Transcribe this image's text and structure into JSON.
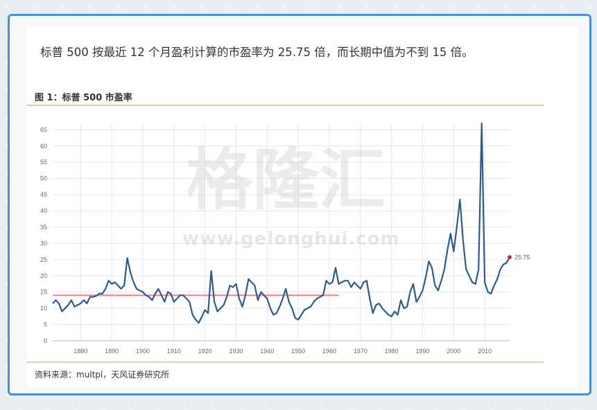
{
  "headline": "标普 500 按最近 12 个月盈利计算的市盈率为 25.75 倍，而长期中值为不到 15 倍。",
  "figure_title": "图 1：标普 500 市盈率",
  "source": "资料来源：multpl，天风证券研究所",
  "watermark": {
    "brand": "格隆汇",
    "url": "www.gelonghui.com"
  },
  "colors": {
    "series": "#2c5a8f",
    "median": "#f08080",
    "endpoint": "#d62828",
    "grid": "#e6e6e6",
    "rules": "#f2c7a3",
    "frame": "#4a8fd6"
  },
  "chart_data": {
    "type": "line",
    "xlim": [
      1871,
      2018
    ],
    "ylim": [
      0,
      67
    ],
    "x_ticks": [
      1880,
      1890,
      1900,
      1910,
      1920,
      1930,
      1940,
      1950,
      1960,
      1970,
      1980,
      1990,
      2000,
      2010
    ],
    "y_ticks": [
      0,
      5,
      10,
      15,
      20,
      25,
      30,
      35,
      40,
      45,
      50,
      55,
      60,
      65
    ],
    "grid": true,
    "series": [
      {
        "points": [
          [
            1871,
            11.5
          ],
          [
            1872,
            12.5
          ],
          [
            1873,
            11.5
          ],
          [
            1874,
            9
          ],
          [
            1875,
            10
          ],
          [
            1876,
            11
          ],
          [
            1877,
            12.5
          ],
          [
            1878,
            10.5
          ],
          [
            1879,
            11
          ],
          [
            1880,
            11.5
          ],
          [
            1881,
            12.5
          ],
          [
            1882,
            11.5
          ],
          [
            1883,
            13.5
          ],
          [
            1884,
            13.5
          ],
          [
            1885,
            13.8
          ],
          [
            1886,
            14.5
          ],
          [
            1887,
            14.5
          ],
          [
            1888,
            16
          ],
          [
            1889,
            18.5
          ],
          [
            1890,
            17.5
          ],
          [
            1891,
            18
          ],
          [
            1892,
            17
          ],
          [
            1893,
            16
          ],
          [
            1894,
            17
          ],
          [
            1895,
            25.5
          ],
          [
            1896,
            21
          ],
          [
            1897,
            18
          ],
          [
            1898,
            16
          ],
          [
            1899,
            15.5
          ],
          [
            1900,
            15
          ],
          [
            1901,
            14
          ],
          [
            1902,
            13.5
          ],
          [
            1903,
            12.5
          ],
          [
            1904,
            14.5
          ],
          [
            1905,
            16
          ],
          [
            1906,
            14
          ],
          [
            1907,
            12
          ],
          [
            1908,
            15
          ],
          [
            1909,
            14.5
          ],
          [
            1910,
            12
          ],
          [
            1911,
            13
          ],
          [
            1912,
            14
          ],
          [
            1913,
            14
          ],
          [
            1914,
            13
          ],
          [
            1915,
            12
          ],
          [
            1916,
            8
          ],
          [
            1917,
            6.5
          ],
          [
            1918,
            5.5
          ],
          [
            1919,
            7.5
          ],
          [
            1920,
            9.5
          ],
          [
            1921,
            8.5
          ],
          [
            1922,
            21.5
          ],
          [
            1923,
            12
          ],
          [
            1924,
            9
          ],
          [
            1925,
            10
          ],
          [
            1926,
            11
          ],
          [
            1927,
            13.5
          ],
          [
            1928,
            17
          ],
          [
            1929,
            16.5
          ],
          [
            1930,
            17.5
          ],
          [
            1931,
            13
          ],
          [
            1932,
            10.5
          ],
          [
            1933,
            14
          ],
          [
            1934,
            19
          ],
          [
            1935,
            18
          ],
          [
            1936,
            17
          ],
          [
            1937,
            12.5
          ],
          [
            1938,
            15
          ],
          [
            1939,
            14
          ],
          [
            1940,
            13
          ],
          [
            1941,
            10
          ],
          [
            1942,
            8
          ],
          [
            1943,
            8.5
          ],
          [
            1944,
            10.5
          ],
          [
            1945,
            13
          ],
          [
            1946,
            16
          ],
          [
            1947,
            12
          ],
          [
            1948,
            10
          ],
          [
            1949,
            7
          ],
          [
            1950,
            6.5
          ],
          [
            1951,
            8
          ],
          [
            1952,
            9.5
          ],
          [
            1953,
            10
          ],
          [
            1954,
            10.5
          ],
          [
            1955,
            12
          ],
          [
            1956,
            13
          ],
          [
            1957,
            13.5
          ],
          [
            1958,
            14
          ],
          [
            1959,
            18.5
          ],
          [
            1960,
            17.5
          ],
          [
            1961,
            18
          ],
          [
            1962,
            22.5
          ],
          [
            1963,
            17.5
          ],
          [
            1964,
            18
          ],
          [
            1965,
            18.5
          ],
          [
            1966,
            18.5
          ],
          [
            1967,
            16.5
          ],
          [
            1968,
            18
          ],
          [
            1969,
            17
          ],
          [
            1970,
            16
          ],
          [
            1971,
            18
          ],
          [
            1972,
            18.5
          ],
          [
            1973,
            13
          ],
          [
            1974,
            8.5
          ],
          [
            1975,
            11
          ],
          [
            1976,
            11.5
          ],
          [
            1977,
            10
          ],
          [
            1978,
            9
          ],
          [
            1979,
            8
          ],
          [
            1980,
            7.5
          ],
          [
            1981,
            9
          ],
          [
            1982,
            8
          ],
          [
            1983,
            12.5
          ],
          [
            1984,
            10
          ],
          [
            1985,
            10.5
          ],
          [
            1986,
            15
          ],
          [
            1987,
            17.5
          ],
          [
            1988,
            12
          ],
          [
            1989,
            13.5
          ],
          [
            1990,
            15.5
          ],
          [
            1991,
            19.5
          ],
          [
            1992,
            24.5
          ],
          [
            1993,
            22.5
          ],
          [
            1994,
            17
          ],
          [
            1995,
            15.5
          ],
          [
            1996,
            18.5
          ],
          [
            1997,
            22
          ],
          [
            1998,
            28
          ],
          [
            1999,
            33
          ],
          [
            2000,
            27.5
          ],
          [
            2001,
            35
          ],
          [
            2002,
            43.5
          ],
          [
            2003,
            31
          ],
          [
            2004,
            22
          ],
          [
            2005,
            20
          ],
          [
            2006,
            18
          ],
          [
            2007,
            17.5
          ],
          [
            2008,
            22
          ],
          [
            2009,
            67
          ],
          [
            2010,
            18
          ],
          [
            2011,
            15
          ],
          [
            2012,
            14.5
          ],
          [
            2013,
            17
          ],
          [
            2014,
            19
          ],
          [
            2015,
            22
          ],
          [
            2016,
            23.5
          ],
          [
            2017,
            24
          ],
          [
            2018,
            25.75
          ]
        ]
      },
      {
        "points": [
          [
            1871,
            14
          ],
          [
            1963,
            14
          ]
        ]
      }
    ],
    "end_label": "25.75"
  }
}
